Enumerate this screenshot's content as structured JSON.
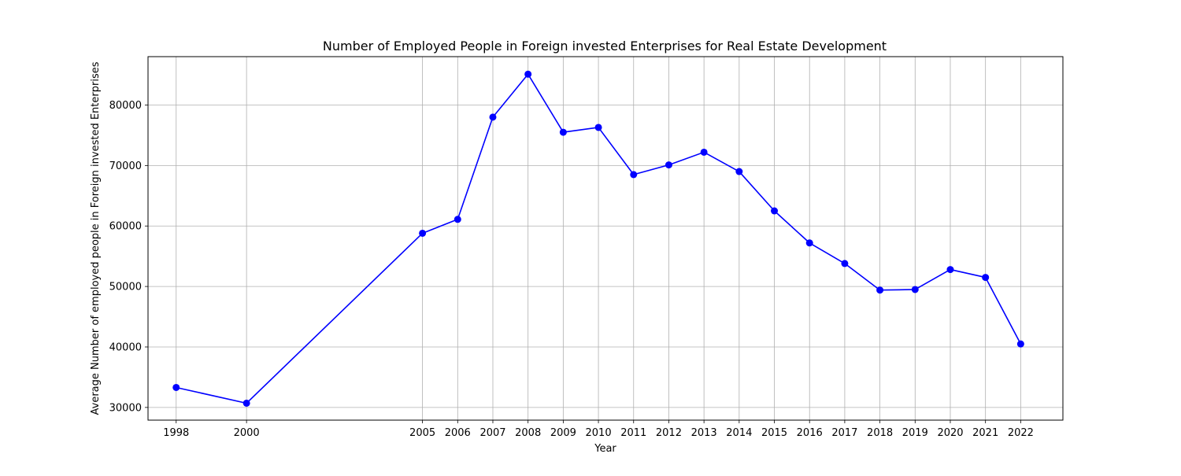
{
  "chart_data": {
    "type": "line",
    "title": "Number of Employed People in Foreign invested Enterprises for Real Estate Development",
    "xlabel": "Year",
    "ylabel": "Average Number of employed people in Foreign invested Enterprises",
    "x": [
      1998,
      2000,
      2005,
      2006,
      2007,
      2008,
      2009,
      2010,
      2011,
      2012,
      2013,
      2014,
      2015,
      2016,
      2017,
      2018,
      2019,
      2020,
      2021,
      2022
    ],
    "x_tick_labels": [
      "1998",
      "2000",
      "2005",
      "2006",
      "2007",
      "2008",
      "2009",
      "2010",
      "2011",
      "2012",
      "2013",
      "2014",
      "2015",
      "2016",
      "2017",
      "2018",
      "2019",
      "2020",
      "2021",
      "2022"
    ],
    "xlim": [
      1997.2,
      2023.2
    ],
    "ylim": [
      27900,
      88000
    ],
    "y_ticks": [
      30000,
      40000,
      50000,
      60000,
      70000,
      80000
    ],
    "y_tick_labels": [
      "30000",
      "40000",
      "50000",
      "60000",
      "70000",
      "80000"
    ],
    "series": [
      {
        "values": [
          33300,
          30700,
          58800,
          61100,
          78000,
          85100,
          75500,
          76300,
          68500,
          70100,
          72200,
          69000,
          62500,
          57200,
          53800,
          49400,
          49500,
          52800,
          51500,
          40500
        ],
        "color": "#0000ff",
        "marker": "circle"
      }
    ],
    "grid": true,
    "legend": "none"
  }
}
